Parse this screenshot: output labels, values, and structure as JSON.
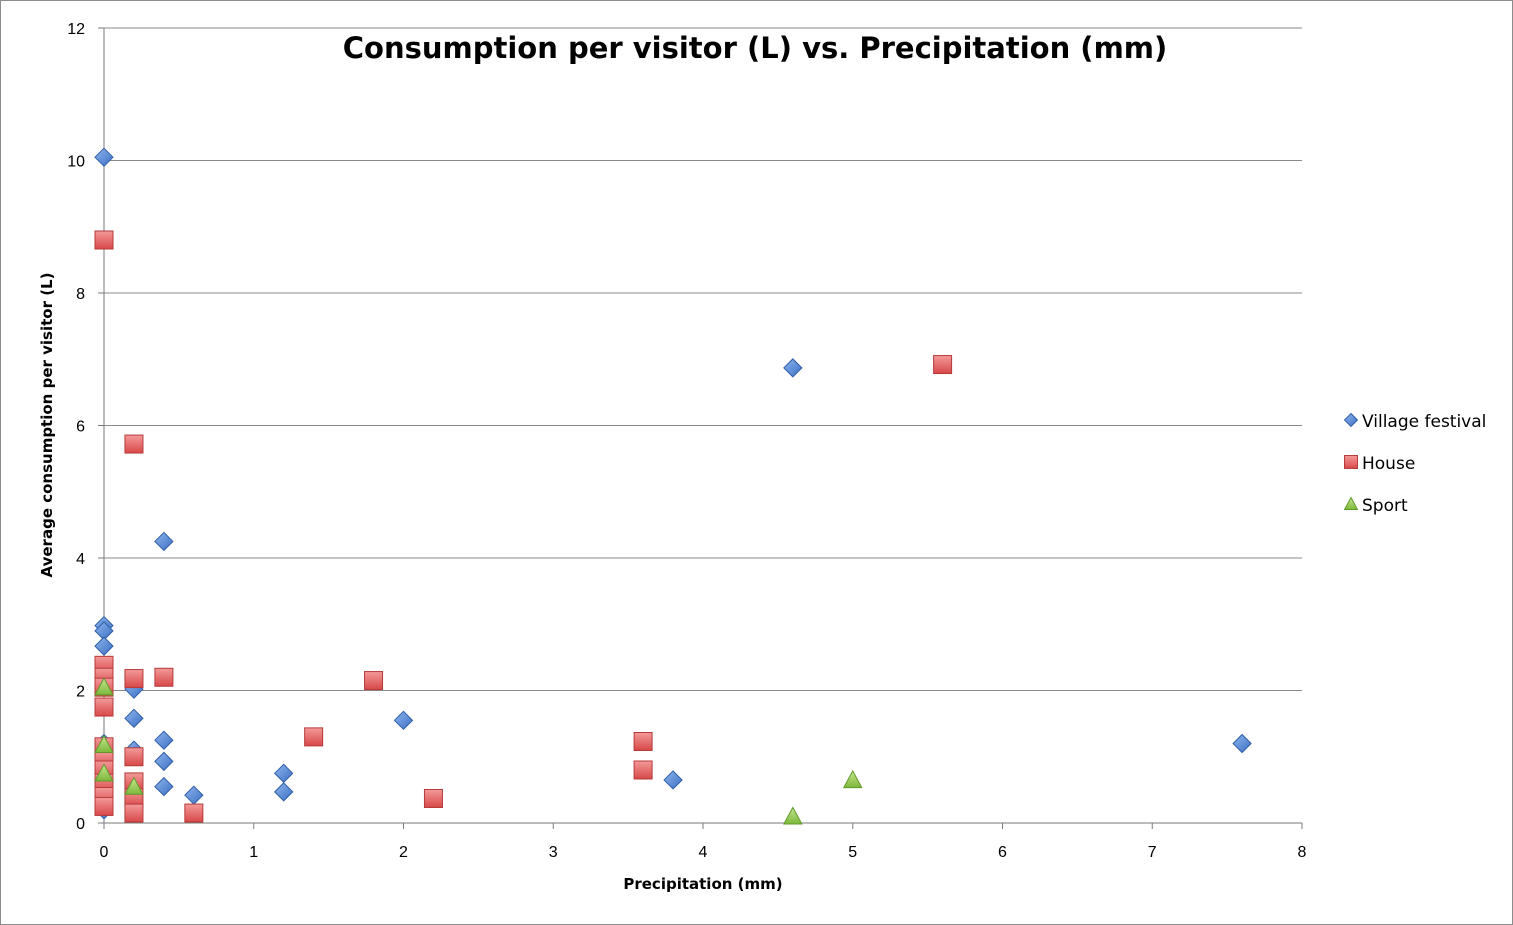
{
  "chart_data": {
    "type": "scatter",
    "title": "Consumption per visitor (L) vs. Precipitation (mm)",
    "xlabel": "Precipitation (mm)",
    "ylabel": "Average consumption per visitor (L)",
    "xlim": [
      0,
      8
    ],
    "ylim": [
      0,
      12
    ],
    "x_ticks": [
      0,
      1,
      2,
      3,
      4,
      5,
      6,
      7,
      8
    ],
    "y_ticks": [
      0,
      2,
      4,
      6,
      8,
      10,
      12
    ],
    "grid": "horizontal",
    "legend_position": "right",
    "series": [
      {
        "name": "Village festival",
        "marker": "diamond",
        "color": "#4a7fd0",
        "points": [
          {
            "x": 0,
            "y": 10.05
          },
          {
            "x": 0,
            "y": 2.98
          },
          {
            "x": 0,
            "y": 2.9
          },
          {
            "x": 0,
            "y": 2.67
          },
          {
            "x": 0,
            "y": 1.2
          },
          {
            "x": 0,
            "y": 0.2
          },
          {
            "x": 0.2,
            "y": 2.02
          },
          {
            "x": 0.2,
            "y": 1.58
          },
          {
            "x": 0.2,
            "y": 1.1
          },
          {
            "x": 0.4,
            "y": 4.25
          },
          {
            "x": 0.4,
            "y": 1.25
          },
          {
            "x": 0.4,
            "y": 0.93
          },
          {
            "x": 0.4,
            "y": 0.55
          },
          {
            "x": 0.6,
            "y": 0.42
          },
          {
            "x": 1.2,
            "y": 0.75
          },
          {
            "x": 1.2,
            "y": 0.47
          },
          {
            "x": 2.0,
            "y": 1.55
          },
          {
            "x": 3.8,
            "y": 0.65
          },
          {
            "x": 4.6,
            "y": 6.87
          },
          {
            "x": 7.6,
            "y": 1.2
          }
        ]
      },
      {
        "name": "House",
        "marker": "square",
        "color": "#e05a5a",
        "points": [
          {
            "x": 0,
            "y": 8.8
          },
          {
            "x": 0,
            "y": 2.38
          },
          {
            "x": 0,
            "y": 2.2
          },
          {
            "x": 0,
            "y": 2.05
          },
          {
            "x": 0,
            "y": 1.75
          },
          {
            "x": 0,
            "y": 1.15
          },
          {
            "x": 0,
            "y": 0.95
          },
          {
            "x": 0,
            "y": 0.8
          },
          {
            "x": 0,
            "y": 0.6
          },
          {
            "x": 0,
            "y": 0.4
          },
          {
            "x": 0,
            "y": 0.25
          },
          {
            "x": 0.2,
            "y": 5.72
          },
          {
            "x": 0.2,
            "y": 2.18
          },
          {
            "x": 0.2,
            "y": 1.0
          },
          {
            "x": 0.2,
            "y": 0.62
          },
          {
            "x": 0.2,
            "y": 0.38
          },
          {
            "x": 0.2,
            "y": 0.15
          },
          {
            "x": 0.4,
            "y": 2.2
          },
          {
            "x": 0.6,
            "y": 0.15
          },
          {
            "x": 1.4,
            "y": 1.3
          },
          {
            "x": 1.8,
            "y": 2.15
          },
          {
            "x": 2.2,
            "y": 0.37
          },
          {
            "x": 3.6,
            "y": 1.23
          },
          {
            "x": 3.6,
            "y": 0.8
          },
          {
            "x": 5.6,
            "y": 6.92
          }
        ]
      },
      {
        "name": "Sport",
        "marker": "triangle",
        "color": "#8cc63f",
        "points": [
          {
            "x": 0,
            "y": 2.05
          },
          {
            "x": 0,
            "y": 1.18
          },
          {
            "x": 0,
            "y": 0.75
          },
          {
            "x": 0.2,
            "y": 0.55
          },
          {
            "x": 4.6,
            "y": 0.1
          },
          {
            "x": 5.0,
            "y": 0.65
          }
        ]
      }
    ]
  }
}
